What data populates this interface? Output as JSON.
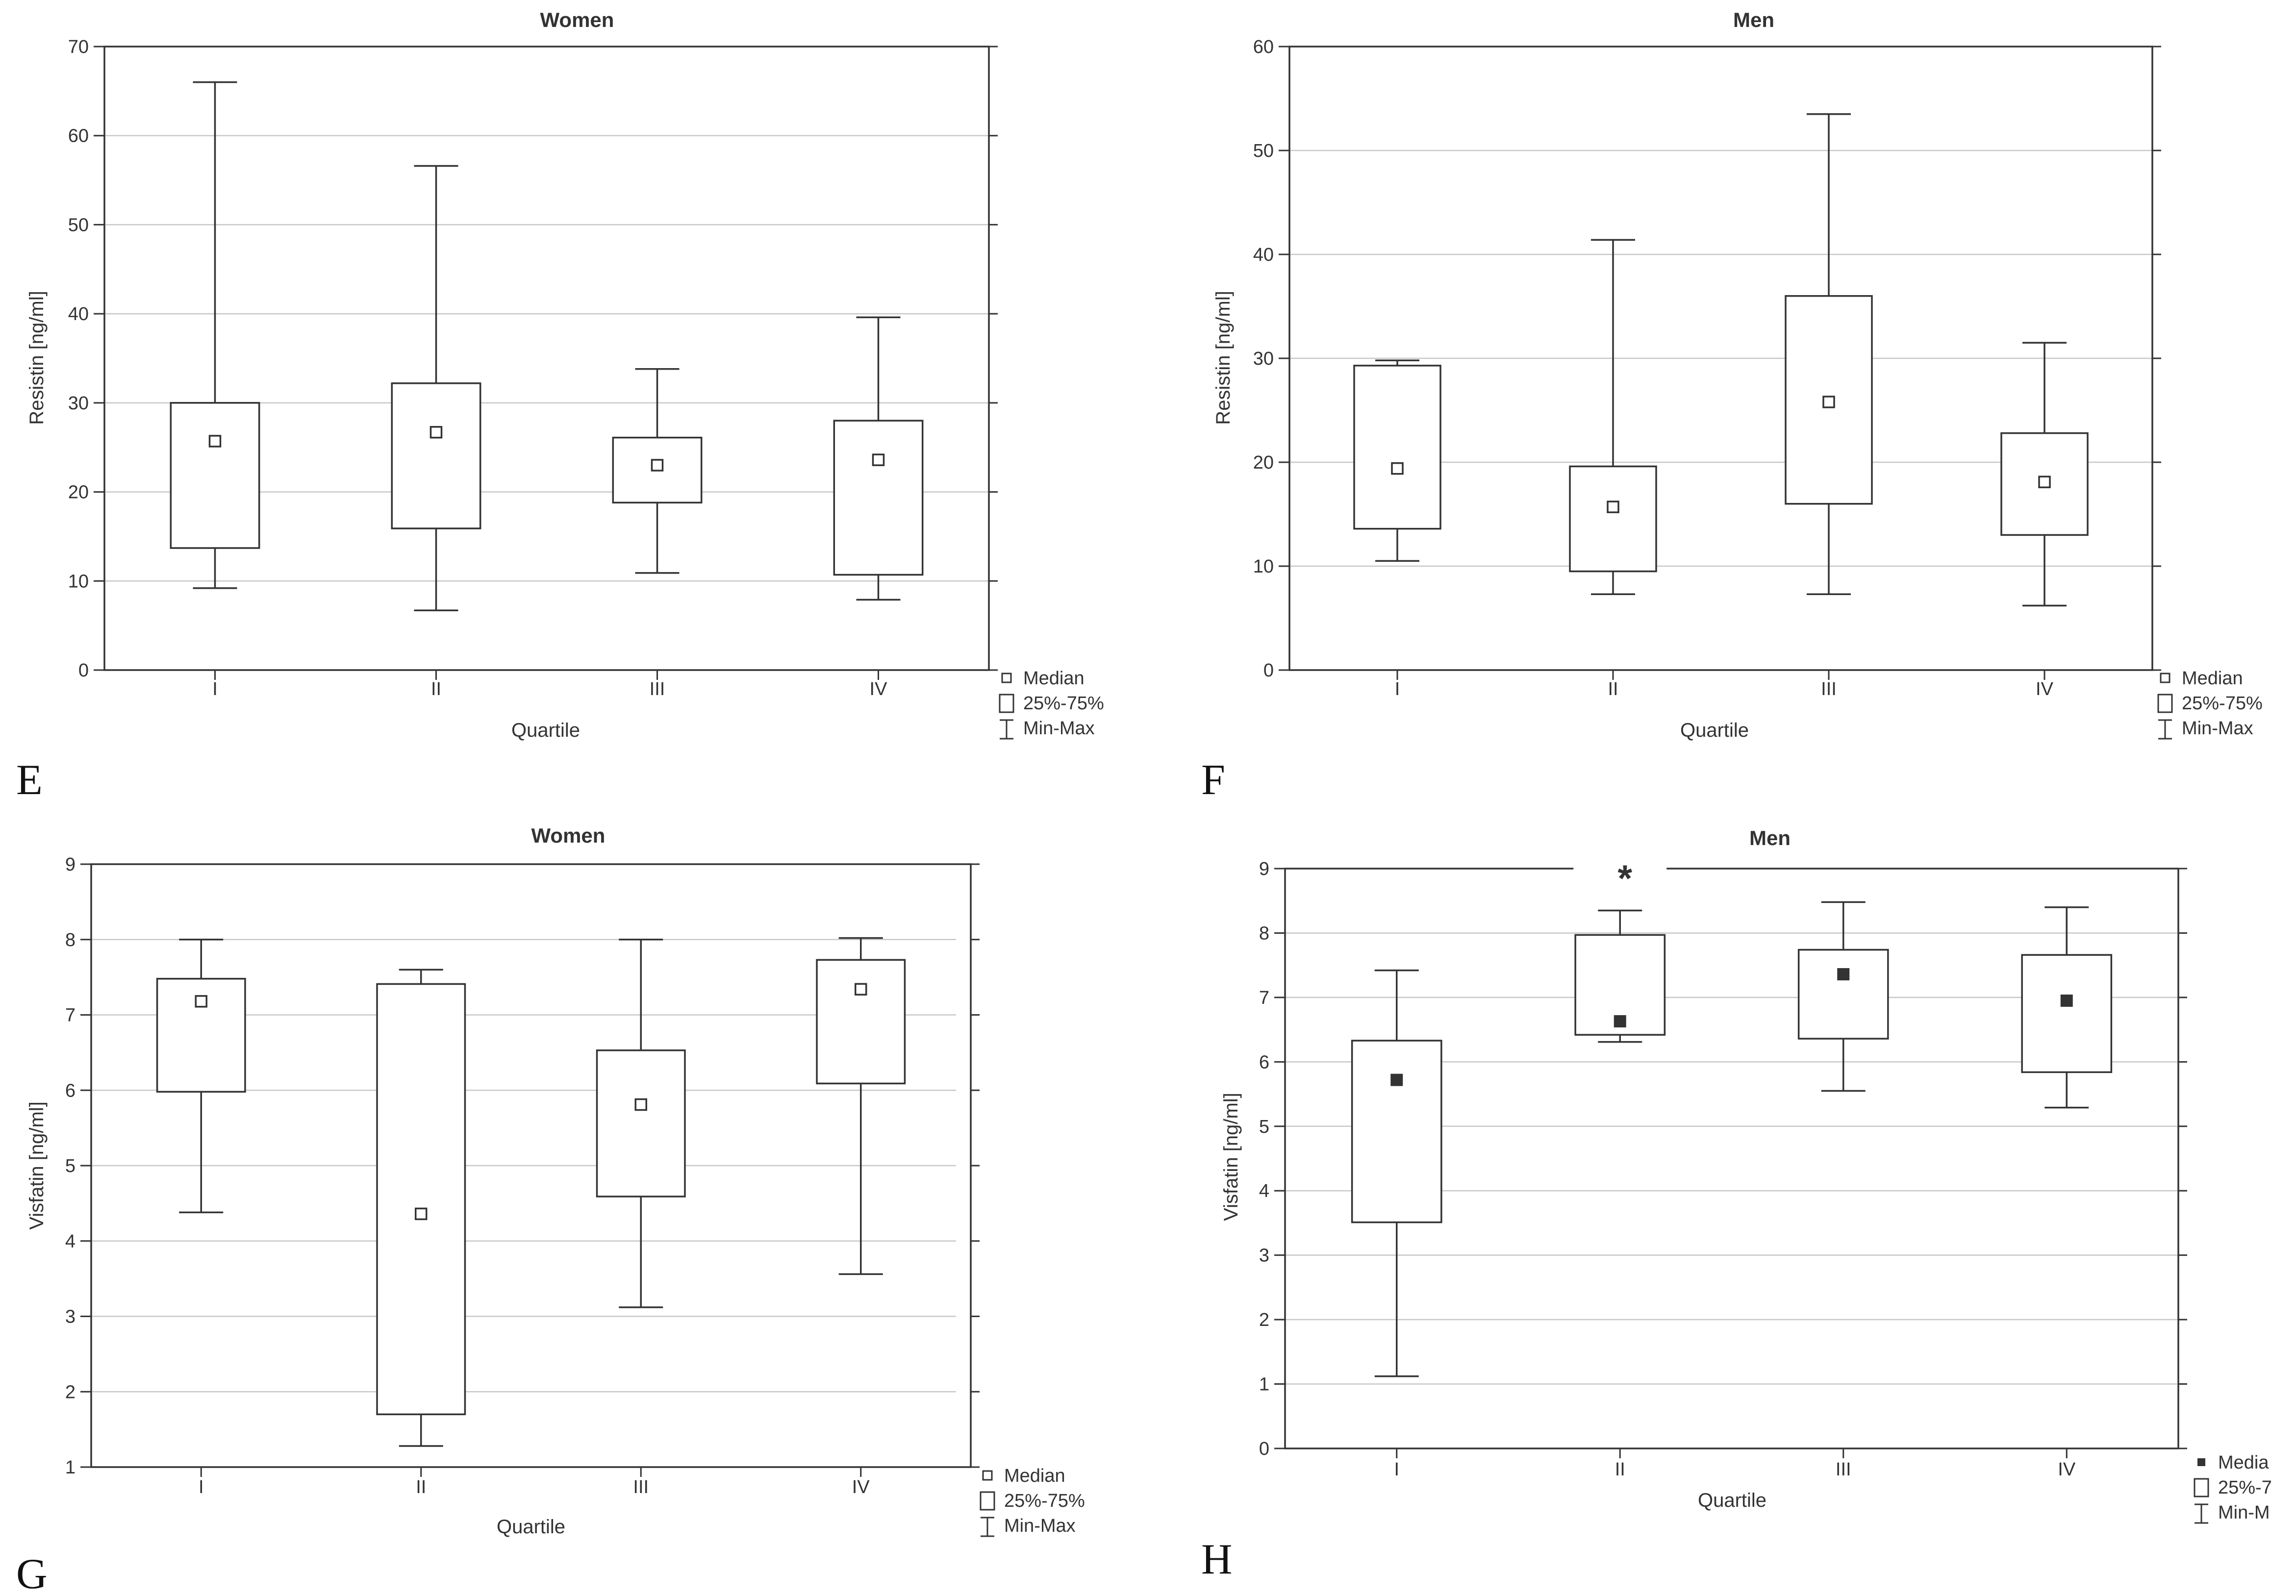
{
  "chart_data": [
    {
      "type": "box",
      "panel_label": "E",
      "title": "Women",
      "xlabel": "Quartile",
      "ylabel": "Resistin [ng/ml]",
      "ylim": [
        0,
        70
      ],
      "yticks": [
        0,
        10,
        20,
        30,
        40,
        50,
        60,
        70
      ],
      "grid": true,
      "categories": [
        "I",
        "II",
        "III",
        "IV"
      ],
      "boxes": [
        {
          "min": 9.2,
          "q1": 13.7,
          "median": 25.7,
          "q3": 30.0,
          "max": 66.0
        },
        {
          "min": 6.7,
          "q1": 15.9,
          "median": 26.7,
          "q3": 32.2,
          "max": 56.6
        },
        {
          "min": 10.9,
          "q1": 18.8,
          "median": 23.0,
          "q3": 26.1,
          "max": 33.8
        },
        {
          "min": 7.9,
          "q1": 10.7,
          "median": 23.6,
          "q3": 28.0,
          "max": 39.6
        }
      ],
      "legend": {
        "median": "Median",
        "box": "25%-75%",
        "whisker": "Min-Max"
      },
      "median_marker": "hollow",
      "significance": []
    },
    {
      "type": "box",
      "panel_label": "F",
      "title": "Men",
      "xlabel": "Quartile",
      "ylabel": "Resistin [ng/ml]",
      "ylim": [
        0,
        60
      ],
      "yticks": [
        0,
        10,
        20,
        30,
        40,
        50,
        60
      ],
      "grid": true,
      "categories": [
        "I",
        "II",
        "III",
        "IV"
      ],
      "boxes": [
        {
          "min": 10.5,
          "q1": 13.6,
          "median": 19.4,
          "q3": 29.3,
          "max": 29.8
        },
        {
          "min": 7.3,
          "q1": 9.5,
          "median": 15.7,
          "q3": 19.6,
          "max": 41.4
        },
        {
          "min": 7.3,
          "q1": 16.0,
          "median": 25.8,
          "q3": 36.0,
          "max": 53.5
        },
        {
          "min": 6.2,
          "q1": 13.0,
          "median": 18.1,
          "q3": 22.8,
          "max": 31.5
        }
      ],
      "legend": {
        "median": "Median",
        "box": "25%-75%",
        "whisker": "Min-Max"
      },
      "median_marker": "hollow",
      "significance": []
    },
    {
      "type": "box",
      "panel_label": "G",
      "title": "Women",
      "xlabel": "Quartile",
      "ylabel": "Visfatin [ng/ml]",
      "ylim": [
        1,
        9
      ],
      "yticks": [
        1,
        2,
        3,
        4,
        5,
        6,
        7,
        8,
        9
      ],
      "grid": true,
      "categories": [
        "I",
        "II",
        "III",
        "IV"
      ],
      "boxes": [
        {
          "min": 4.38,
          "q1": 5.98,
          "median": 7.18,
          "q3": 7.48,
          "max": 8.0
        },
        {
          "min": 1.28,
          "q1": 1.7,
          "median": 4.36,
          "q3": 7.41,
          "max": 7.6
        },
        {
          "min": 3.12,
          "q1": 4.59,
          "median": 5.81,
          "q3": 6.53,
          "max": 8.0
        },
        {
          "min": 3.56,
          "q1": 6.09,
          "median": 7.34,
          "q3": 7.73,
          "max": 8.02
        }
      ],
      "legend": {
        "median": "Median",
        "box": "25%-75%",
        "whisker": "Min-Max"
      },
      "median_marker": "hollow",
      "significance": []
    },
    {
      "type": "box",
      "panel_label": "H",
      "title": "Men",
      "xlabel": "Quartile",
      "ylabel": "Visfatin [ng/ml]",
      "ylim": [
        0,
        9
      ],
      "yticks": [
        0,
        1,
        2,
        3,
        4,
        5,
        6,
        7,
        8,
        9
      ],
      "grid": true,
      "categories": [
        "I",
        "II",
        "III",
        "IV"
      ],
      "boxes": [
        {
          "min": 1.12,
          "q1": 3.51,
          "median": 5.72,
          "q3": 6.33,
          "max": 7.42
        },
        {
          "min": 6.31,
          "q1": 6.42,
          "median": 6.63,
          "q3": 7.97,
          "max": 8.35
        },
        {
          "min": 5.55,
          "q1": 6.36,
          "median": 7.36,
          "q3": 7.74,
          "max": 8.48
        },
        {
          "min": 5.29,
          "q1": 5.84,
          "median": 6.95,
          "q3": 7.66,
          "max": 8.4
        }
      ],
      "legend": {
        "median": "Media",
        "box": "25%-7",
        "whisker": "Min-M"
      },
      "median_marker": "filled",
      "significance": [
        {
          "category": "II",
          "symbol": "*"
        }
      ]
    }
  ]
}
